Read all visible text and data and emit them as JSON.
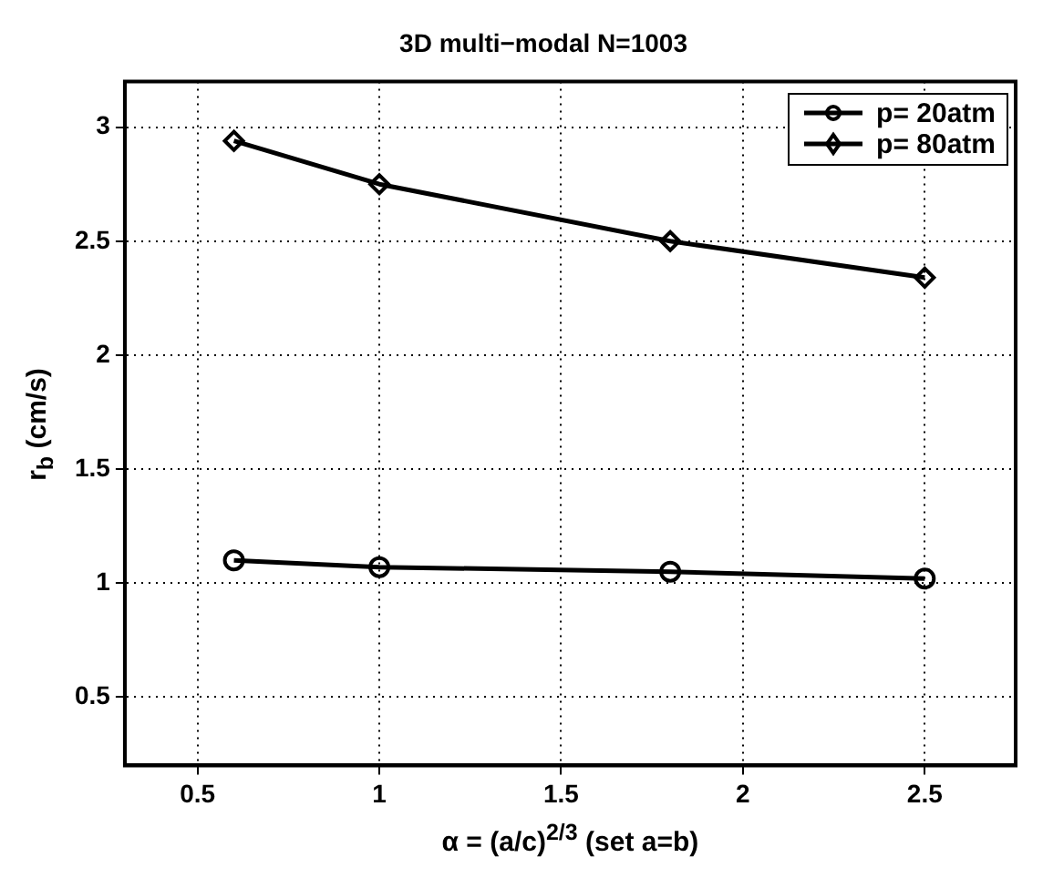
{
  "chart_data": {
    "type": "line",
    "title": "3D multi−modal N=1003",
    "xlabel": "α = (a/c)$^{2/3}$ (set a=b)",
    "ylabel": "r$_{b}$ (cm/s)",
    "x": [
      0.6,
      1,
      1.8,
      2.5
    ],
    "series": [
      {
        "name": "p= 20atm",
        "color": "#000000",
        "marker": "circle",
        "values": [
          1.1,
          1.07,
          1.05,
          1.02
        ]
      },
      {
        "name": "p= 80atm",
        "color": "#000000",
        "marker": "diamond",
        "values": [
          2.94,
          2.75,
          2.5,
          2.34
        ]
      }
    ],
    "xlim": [
      0.3,
      2.75
    ],
    "xticks": [
      0.5,
      1,
      1.5,
      2,
      2.5
    ],
    "ylim": [
      0.2,
      3.2
    ],
    "yticks": [
      0.5,
      1,
      1.5,
      2,
      2.5,
      3
    ],
    "grid": true,
    "legend": "top right",
    "line_style": "solid"
  }
}
